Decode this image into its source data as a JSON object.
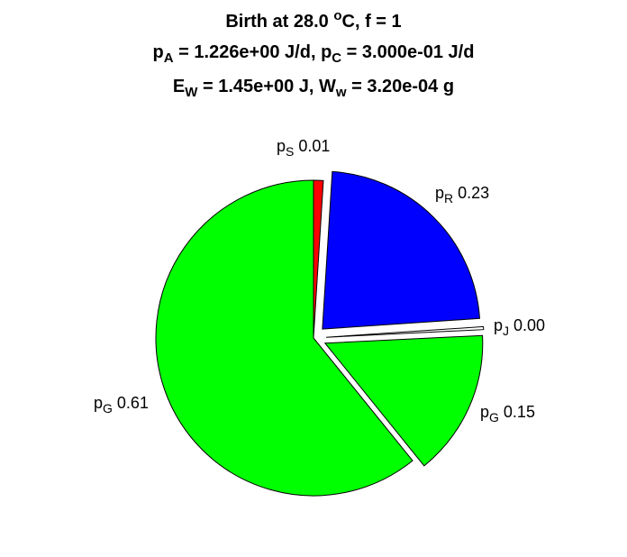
{
  "title": {
    "line1": {
      "prefix": "Birth at 28.0 ",
      "degree": "o",
      "suffix": "C, f = 1"
    },
    "line2": {
      "a_sym": "p",
      "a_sub": "A",
      "a_val": " = 1.226e+00 J/d, ",
      "c_sym": "p",
      "c_sub": "C",
      "c_val": " = 3.000e-01 J/d"
    },
    "line3": {
      "e_sym": "E",
      "e_sub": "W",
      "e_val": " = 1.45e+00 J, ",
      "w_sym": "W",
      "w_sub": "w",
      "w_val": " = 3.20e-04 g"
    }
  },
  "chart_data": {
    "type": "pie",
    "slices": [
      {
        "sym": "p",
        "sub": "S",
        "label": "0.01",
        "value": 0.01,
        "color": "#ff0000",
        "exploded": false
      },
      {
        "sym": "p",
        "sub": "R",
        "label": "0.23",
        "value": 0.23,
        "color": "#0000ff",
        "exploded": true
      },
      {
        "sym": "p",
        "sub": "J",
        "label": "0.00",
        "value": 0.003,
        "color": "#ffffff",
        "exploded": true
      },
      {
        "sym": "p",
        "sub": "G",
        "label": "0.15",
        "value": 0.15,
        "color": "#00ff00",
        "exploded": true
      },
      {
        "sym": "p",
        "sub": "G",
        "label": "0.61",
        "value": 0.61,
        "color": "#00ff00",
        "exploded": false
      }
    ]
  }
}
